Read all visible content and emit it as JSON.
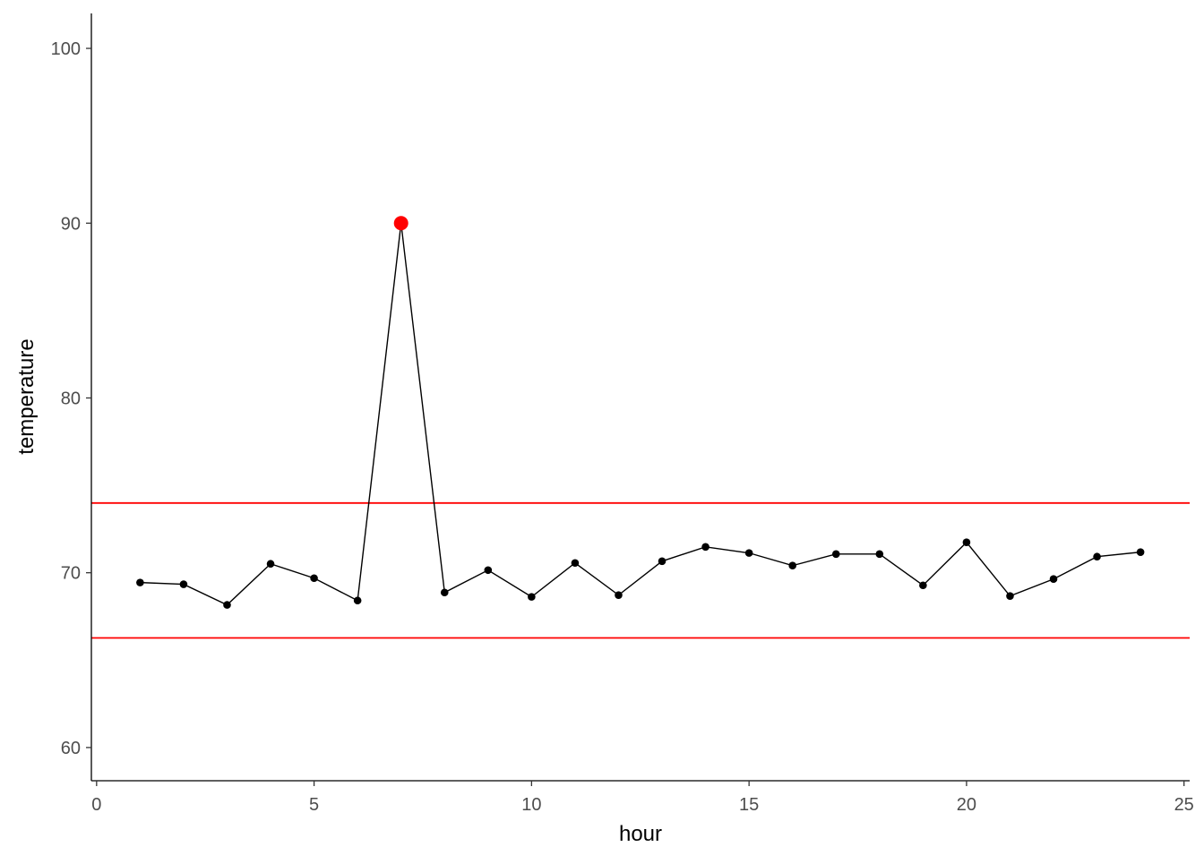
{
  "chart_data": {
    "type": "line",
    "title": "",
    "xlabel": "hour",
    "ylabel": "temperature",
    "xlim": [
      -0.12,
      25.13
    ],
    "ylim": [
      58.1,
      102.0
    ],
    "x_ticks": [
      0,
      5,
      10,
      15,
      20,
      25
    ],
    "y_ticks": [
      60,
      70,
      80,
      90,
      100
    ],
    "grid": false,
    "x": [
      1,
      2,
      3,
      4,
      5,
      6,
      7,
      8,
      9,
      10,
      11,
      12,
      13,
      14,
      15,
      16,
      17,
      18,
      19,
      20,
      21,
      22,
      23,
      24
    ],
    "series": [
      {
        "values": [
          69.44,
          69.34,
          68.16,
          70.51,
          69.69,
          68.41,
          90.0,
          68.87,
          70.15,
          68.62,
          70.56,
          68.72,
          70.66,
          71.48,
          71.13,
          70.41,
          71.07,
          71.07,
          69.28,
          71.74,
          68.67,
          69.64,
          70.92,
          71.18
        ],
        "color": "#000000"
      }
    ],
    "highlighted_points": [
      {
        "x": 7,
        "y": 90.0,
        "color": "#ff0000"
      }
    ],
    "hlines": [
      {
        "y": 73.99,
        "color": "#ff0000"
      },
      {
        "y": 66.27,
        "color": "#ff0000"
      }
    ]
  }
}
